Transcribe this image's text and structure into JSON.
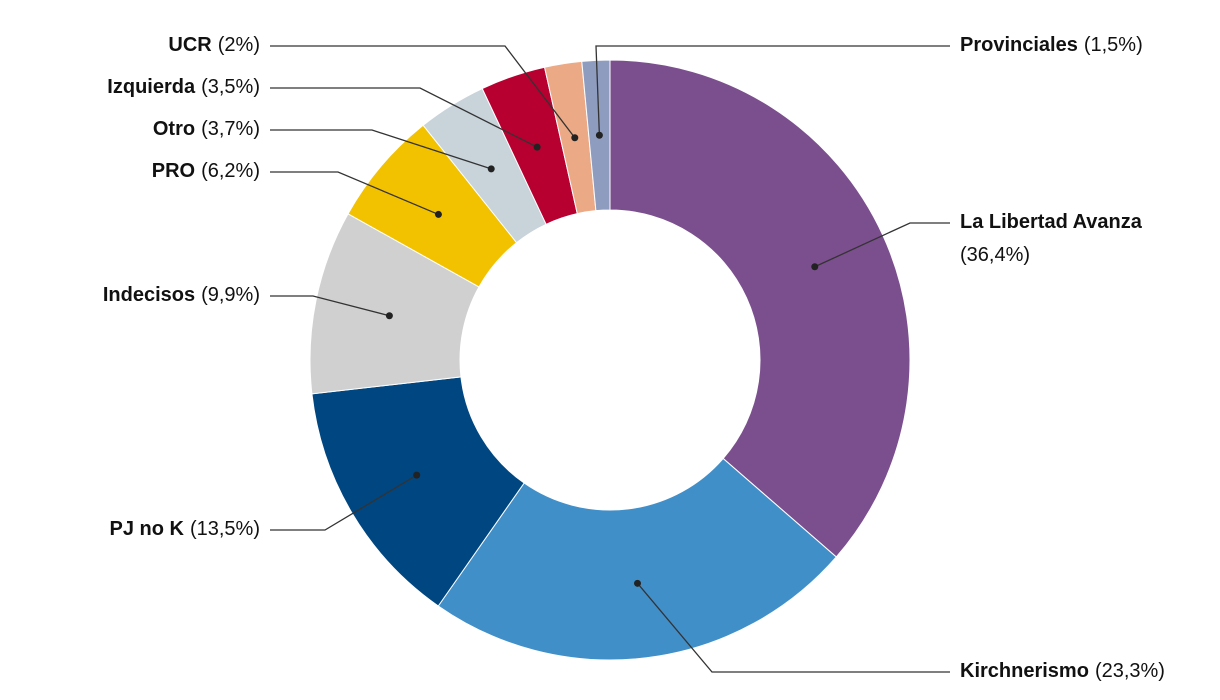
{
  "chart_data": {
    "type": "donut",
    "categories": [
      "La Libertad Avanza",
      "Kirchnerismo",
      "PJ no K",
      "Indecisos",
      "PRO",
      "Otro",
      "Izquierda",
      "UCR",
      "Provinciales"
    ],
    "values": [
      36.4,
      23.3,
      13.5,
      9.9,
      6.2,
      3.7,
      3.5,
      2,
      1.5
    ],
    "value_labels": [
      "(36,4%)",
      "(23,3%)",
      "(13,5%)",
      "(9,9%)",
      "(6,2%)",
      "(3,7%)",
      "(3,5%)",
      "(2%)",
      "(1,5%)"
    ],
    "colors": [
      "#7b4f8e",
      "#418fc9",
      "#004680",
      "#d0d0d0",
      "#f2c100",
      "#c8d3da",
      "#b70030",
      "#eba985",
      "#8e9cbf"
    ]
  }
}
